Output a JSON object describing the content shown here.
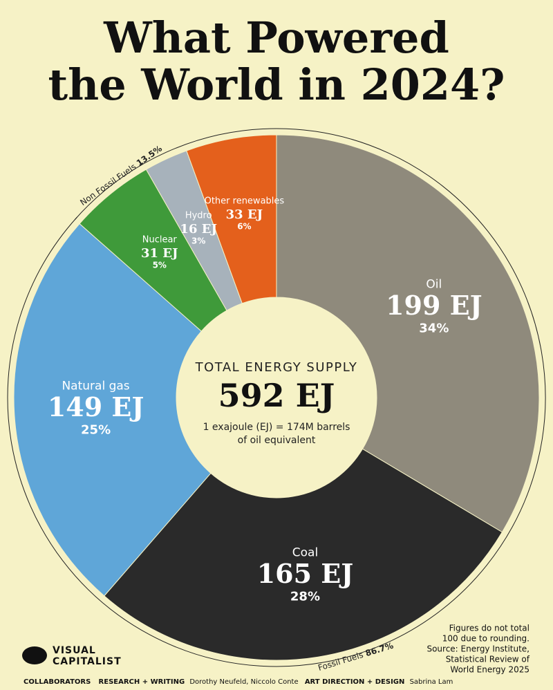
{
  "chart_data": {
    "type": "donut",
    "title": [
      "What Powered",
      "the World in 2024?"
    ],
    "categories": [
      "Oil",
      "Coal",
      "Natural gas",
      "Nuclear",
      "Hydro",
      "Other renewables"
    ],
    "values": [
      199,
      165,
      149,
      31,
      16,
      33
    ],
    "value_labels": [
      "199 EJ",
      "165 EJ",
      "149 EJ",
      "31 EJ",
      "16 EJ",
      "33 EJ"
    ],
    "percents": [
      34,
      28,
      25,
      5,
      3,
      6
    ],
    "percent_labels": [
      "34%",
      "28%",
      "25%",
      "5%",
      "3%",
      "6%"
    ],
    "colors": [
      "#8f8a7c",
      "#2a2a2a",
      "#5fa6d8",
      "#3f9a3a",
      "#a7b2bb",
      "#e4601c"
    ],
    "groups": [
      {
        "name": "Fossil Fuels",
        "value": 86.7,
        "value_label": "86.7%"
      },
      {
        "name": "Non Fossil Fuels",
        "value": 13.5,
        "value_label": "13.5%"
      }
    ],
    "center": {
      "label": "TOTAL ENERGY SUPPLY",
      "value": 592,
      "value_label": "592 EJ",
      "note": [
        "1 exajoule (EJ) = 174M barrels",
        "of oil equivalent"
      ]
    }
  },
  "footer": {
    "note": [
      "Figures do not total",
      "100 due to rounding."
    ],
    "source": [
      "Source: Energy Institute,",
      "Statistical Review of",
      "World Energy 2025"
    ],
    "logo": [
      "VISUAL",
      "CAPITALIST"
    ],
    "credits": [
      "COLLABORATORS",
      "RESEARCH + WRITING",
      "Dorothy Neufeld, Niccolo Conte",
      "ART DIRECTION + DESIGN",
      "Sabrina Lam"
    ]
  }
}
